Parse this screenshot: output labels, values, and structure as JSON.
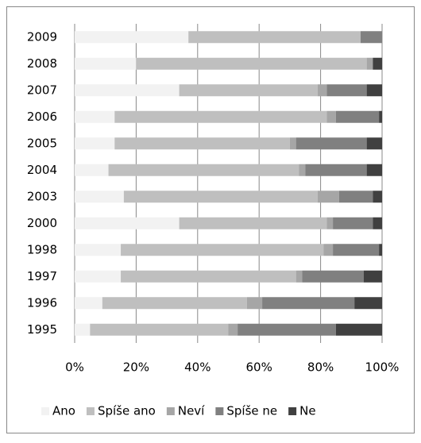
{
  "chart_data": {
    "type": "stacked-barh",
    "categories": [
      "2009",
      "2008",
      "2007",
      "2006",
      "2005",
      "2004",
      "2003",
      "2000",
      "1998",
      "1997",
      "1996",
      "1995"
    ],
    "series": [
      {
        "name": "Ano",
        "color": "#f2f2f2",
        "values": [
          37,
          20,
          34,
          13,
          13,
          11,
          16,
          34,
          15,
          15,
          9,
          5
        ]
      },
      {
        "name": "Spíše ano",
        "color": "#bfbfbf",
        "values": [
          56,
          75,
          45,
          69,
          57,
          62,
          63,
          48,
          66,
          57,
          47,
          45
        ]
      },
      {
        "name": "Neví",
        "color": "#a6a6a6",
        "values": [
          0,
          2,
          3,
          3,
          2,
          2,
          7,
          2,
          3,
          2,
          5,
          3
        ]
      },
      {
        "name": "Spíše ne",
        "color": "#808080",
        "values": [
          7,
          0,
          13,
          14,
          23,
          20,
          11,
          13,
          15,
          20,
          30,
          32
        ]
      },
      {
        "name": "Ne",
        "color": "#404040",
        "values": [
          0,
          3,
          5,
          1,
          5,
          5,
          3,
          3,
          1,
          6,
          9,
          15
        ]
      }
    ],
    "xlim": [
      0,
      100
    ],
    "xticks": [
      {
        "value": 0,
        "label": "0%"
      },
      {
        "value": 20,
        "label": "20%"
      },
      {
        "value": 40,
        "label": "40%"
      },
      {
        "value": 60,
        "label": "60%"
      },
      {
        "value": 80,
        "label": "80%"
      },
      {
        "value": 100,
        "label": "100%"
      }
    ],
    "grid": true,
    "legend": "bottom"
  }
}
